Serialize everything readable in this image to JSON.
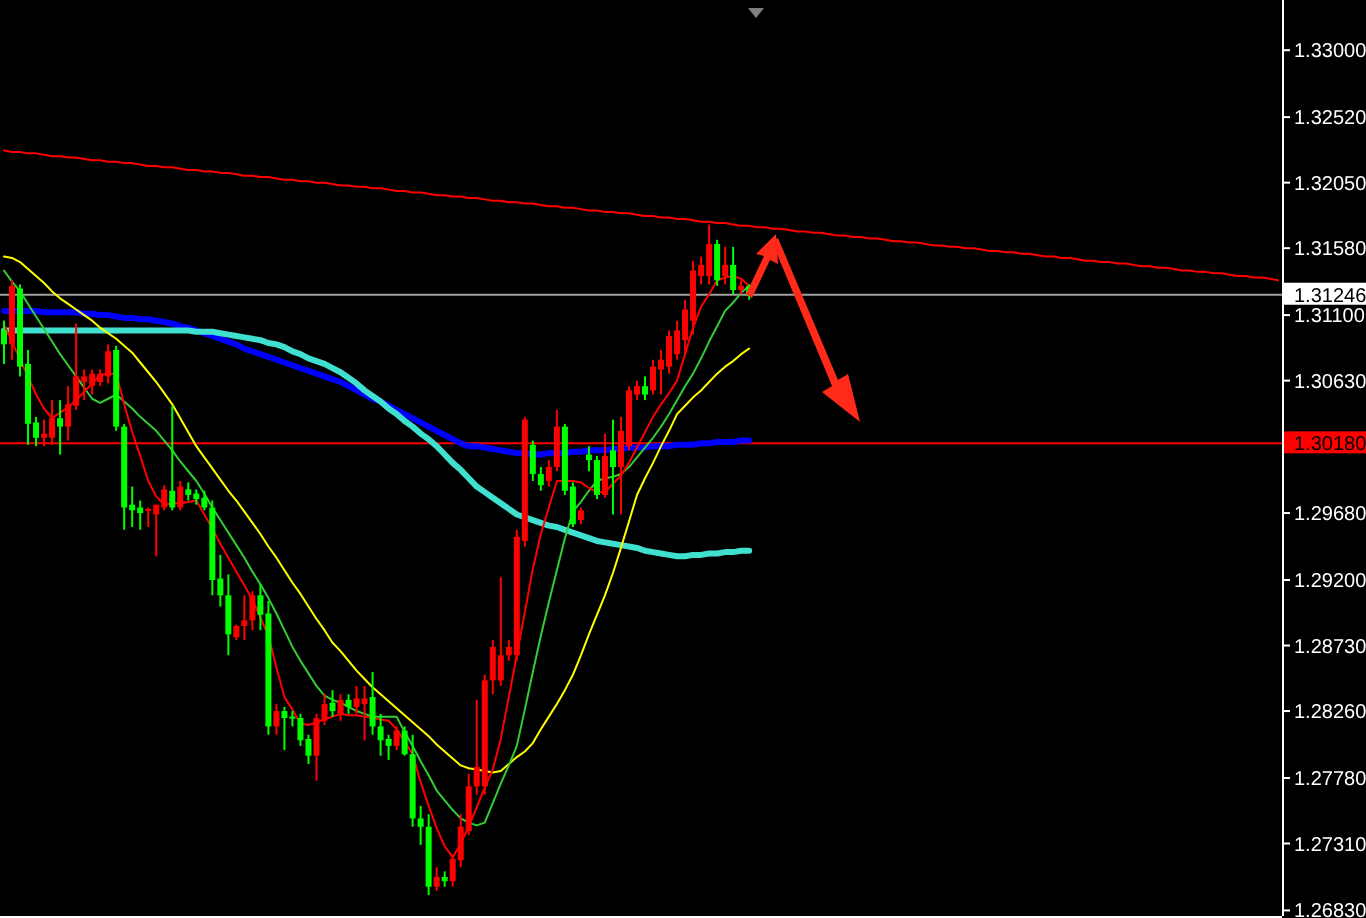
{
  "chart_data": {
    "type": "candlestick",
    "categories": [
      null,
      null,
      null,
      null,
      null,
      null,
      null,
      null,
      null,
      null,
      null,
      null,
      null,
      null,
      null,
      null,
      null,
      null,
      null,
      null,
      null,
      null,
      null,
      null,
      null,
      null,
      null,
      null,
      null,
      null,
      null,
      null,
      null,
      null,
      null,
      null,
      null,
      null,
      null,
      null,
      null,
      null,
      null,
      null,
      null,
      null,
      null,
      null,
      null,
      null,
      null,
      null,
      null,
      null,
      null,
      null,
      null,
      null,
      null,
      null,
      null,
      null,
      null,
      null,
      null,
      null,
      null,
      null,
      null,
      null,
      null,
      null,
      null,
      null,
      null,
      null,
      null,
      null,
      null,
      null,
      null,
      null,
      null,
      null,
      null,
      null,
      null,
      null,
      null,
      null,
      null,
      null,
      null,
      null,
      null,
      null,
      null,
      null,
      null,
      null,
      null,
      null,
      null,
      null,
      null,
      null,
      null,
      null,
      null,
      null,
      null,
      null,
      null,
      null,
      null,
      null,
      null,
      null,
      null,
      null,
      null,
      null,
      null,
      null,
      null,
      null,
      null,
      null,
      null,
      null,
      null,
      null,
      null,
      null,
      null,
      null,
      null,
      null,
      null,
      null,
      null,
      null,
      null,
      null,
      null,
      null,
      null,
      null,
      null,
      null,
      null,
      null,
      null,
      null,
      null,
      null,
      null,
      null,
      null,
      null
    ],
    "ohlc": [
      [
        1.3099,
        1.3106,
        1.3075,
        1.3089
      ],
      [
        1.3089,
        1.3135,
        1.3078,
        1.3131
      ],
      [
        1.3129,
        1.3132,
        1.3066,
        1.3073
      ],
      [
        1.3075,
        1.3085,
        1.3017,
        1.3032
      ],
      [
        1.3033,
        1.3037,
        1.3016,
        1.3022
      ],
      [
        1.3022,
        1.3035,
        1.3016,
        1.3025
      ],
      [
        1.3022,
        1.3049,
        1.3017,
        1.3036
      ],
      [
        1.3036,
        1.3049,
        1.301,
        1.303
      ],
      [
        1.303,
        1.3059,
        1.302,
        1.3046
      ],
      [
        1.3045,
        1.3104,
        1.3042,
        1.3066
      ],
      [
        1.3062,
        1.3071,
        1.3049,
        1.3066
      ],
      [
        1.3059,
        1.3071,
        1.3053,
        1.3068
      ],
      [
        1.3062,
        1.3071,
        1.3059,
        1.3068
      ],
      [
        1.3066,
        1.3089,
        1.3061,
        1.3084
      ],
      [
        1.3085,
        1.3088,
        1.3027,
        1.303
      ],
      [
        1.303,
        1.3032,
        1.2956,
        1.2972
      ],
      [
        1.2974,
        1.2987,
        1.2958,
        1.297
      ],
      [
        1.2972,
        1.2977,
        1.2956,
        1.2968
      ],
      [
        1.297,
        1.2972,
        1.2958,
        1.2971
      ],
      [
        1.2967,
        1.2974,
        1.2937,
        1.2974
      ],
      [
        1.2972,
        1.2988,
        1.297,
        1.2985
      ],
      [
        1.2984,
        1.3045,
        1.297,
        1.2972
      ],
      [
        1.2972,
        1.2991,
        1.297,
        1.2987
      ],
      [
        1.2985,
        1.299,
        1.2977,
        1.2981
      ],
      [
        1.2982,
        1.2985,
        1.2974,
        1.2978
      ],
      [
        1.2979,
        1.2984,
        1.297,
        1.2972
      ],
      [
        1.2972,
        1.2977,
        1.2909,
        1.292
      ],
      [
        1.2921,
        1.2938,
        1.2901,
        1.2909
      ],
      [
        1.2909,
        1.2924,
        1.2866,
        1.2881
      ],
      [
        1.2879,
        1.2888,
        1.2877,
        1.2887
      ],
      [
        1.2887,
        1.2909,
        1.2877,
        1.2891
      ],
      [
        1.2891,
        1.2912,
        1.2884,
        1.2909
      ],
      [
        1.2909,
        1.2917,
        1.2884,
        1.2895
      ],
      [
        1.2896,
        1.2905,
        1.2809,
        1.2815
      ],
      [
        1.2815,
        1.2831,
        1.2809,
        1.2826
      ],
      [
        1.2826,
        1.2829,
        1.2798,
        1.2821
      ],
      [
        1.2822,
        1.2826,
        1.2815,
        1.2821
      ],
      [
        1.2821,
        1.2824,
        1.2801,
        1.2805
      ],
      [
        1.2806,
        1.2809,
        1.2788,
        1.2794
      ],
      [
        1.2794,
        1.2824,
        1.2776,
        1.2821
      ],
      [
        1.2819,
        1.2838,
        1.2816,
        1.2831
      ],
      [
        1.2832,
        1.2841,
        1.2822,
        1.2826
      ],
      [
        1.2824,
        1.2838,
        1.2819,
        1.2834
      ],
      [
        1.2834,
        1.2838,
        1.2824,
        1.2829
      ],
      [
        1.2829,
        1.2844,
        1.2824,
        1.2835
      ],
      [
        1.2831,
        1.2844,
        1.2805,
        1.2835
      ],
      [
        1.2836,
        1.2854,
        1.2809,
        1.2815
      ],
      [
        1.2815,
        1.2824,
        1.2794,
        1.2805
      ],
      [
        1.2806,
        1.2809,
        1.2791,
        1.2801
      ],
      [
        1.2801,
        1.2815,
        1.2798,
        1.2812
      ],
      [
        1.2812,
        1.2815,
        1.2794,
        1.2795
      ],
      [
        1.2795,
        1.2809,
        1.2743,
        1.2749
      ],
      [
        1.2749,
        1.2758,
        1.273,
        1.2743
      ],
      [
        1.2743,
        1.2752,
        1.2694,
        1.27
      ],
      [
        1.27,
        1.2714,
        1.2697,
        1.2707
      ],
      [
        1.2707,
        1.2711,
        1.27,
        1.2704
      ],
      [
        1.2704,
        1.2723,
        1.27,
        1.272
      ],
      [
        1.2719,
        1.2752,
        1.2714,
        1.2743
      ],
      [
        1.274,
        1.2781,
        1.2737,
        1.2772
      ],
      [
        1.2772,
        1.2834,
        1.2766,
        1.2786
      ],
      [
        1.2772,
        1.2852,
        1.2766,
        1.2848
      ],
      [
        1.2848,
        1.2877,
        1.2838,
        1.2872
      ],
      [
        1.2848,
        1.2922,
        1.2844,
        1.2866
      ],
      [
        1.2866,
        1.2877,
        1.2862,
        1.2872
      ],
      [
        1.2866,
        1.2956,
        1.2862,
        1.2951
      ],
      [
        1.2948,
        1.3037,
        1.2944,
        1.3035
      ],
      [
        1.3017,
        1.302,
        1.2991,
        1.2996
      ],
      [
        1.2996,
        1.3001,
        1.2984,
        1.2988
      ],
      [
        1.2991,
        1.3006,
        1.2987,
        1.3001
      ],
      [
        1.3001,
        1.3042,
        1.2998,
        1.303
      ],
      [
        1.303,
        1.3032,
        1.2981,
        1.2984
      ],
      [
        1.2987,
        1.299,
        1.2958,
        1.296
      ],
      [
        1.2963,
        1.2972,
        1.296,
        1.297
      ],
      [
        1.301,
        1.3016,
        1.2998,
        1.3006
      ],
      [
        1.3006,
        1.3009,
        1.2978,
        1.2981
      ],
      [
        1.2981,
        1.3025,
        1.2979,
        1.3009
      ],
      [
        1.3013,
        1.3035,
        1.2967,
        1.3001
      ],
      [
        1.3001,
        1.3037,
        1.2967,
        1.3027
      ],
      [
        1.3016,
        1.3059,
        1.3013,
        1.3056
      ],
      [
        1.3053,
        1.3063,
        1.3049,
        1.3059
      ],
      [
        1.3059,
        1.3066,
        1.3049,
        1.3053
      ],
      [
        1.3056,
        1.3078,
        1.3053,
        1.3073
      ],
      [
        1.3071,
        1.3085,
        1.3053,
        1.3078
      ],
      [
        1.3073,
        1.3099,
        1.3068,
        1.3095
      ],
      [
        1.3082,
        1.3106,
        1.3078,
        1.3099
      ],
      [
        1.3092,
        1.3121,
        1.3082,
        1.3114
      ],
      [
        1.3106,
        1.3149,
        1.3096,
        1.3142
      ],
      [
        1.3138,
        1.3152,
        1.3132,
        1.3146
      ],
      [
        1.3138,
        1.3175,
        1.3132,
        1.3161
      ],
      [
        1.3161,
        1.3164,
        1.3131,
        1.3135
      ],
      [
        1.3138,
        1.3159,
        1.3132,
        1.3146
      ],
      [
        1.3146,
        1.3159,
        1.3125,
        1.3128
      ],
      [
        1.3128,
        1.3135,
        1.3125,
        1.3131
      ],
      [
        1.3131,
        1.3132,
        1.3121,
        1.3124
      ],
      null,
      null,
      null,
      null,
      null,
      null,
      null,
      null,
      null,
      null,
      null,
      null,
      null,
      null,
      null,
      null,
      null,
      null,
      null,
      null,
      null,
      null,
      null,
      null,
      null,
      null,
      null,
      null,
      null,
      null,
      null,
      null,
      null,
      null,
      null,
      null,
      null,
      null,
      null,
      null,
      null,
      null,
      null,
      null,
      null,
      null,
      null,
      null,
      null,
      null,
      null,
      null,
      null,
      null,
      null,
      null,
      null,
      null,
      null,
      null,
      null,
      null,
      null,
      null,
      null,
      null
    ],
    "colors": [
      "#00ff00",
      "#ff0000",
      "#00ff00",
      "#00ff00",
      "#00ff00",
      "#ff0000",
      "#ff0000",
      "#00ff00",
      "#ff0000",
      "#ff0000",
      "#ff0000",
      "#ff0000",
      "#ff0000",
      "#ff0000",
      "#00ff00",
      "#00ff00",
      "#00ff00",
      "#00ff00",
      "#ff0000",
      "#ff0000",
      "#ff0000",
      "#00ff00",
      "#ff0000",
      "#00ff00",
      "#00ff00",
      "#00ff00",
      "#00ff00",
      "#00ff00",
      "#00ff00",
      "#ff0000",
      "#ff0000",
      "#ff0000",
      "#00ff00",
      "#00ff00",
      "#ff0000",
      "#00ff00",
      "#00ff00",
      "#00ff00",
      "#00ff00",
      "#ff0000",
      "#ff0000",
      "#00ff00",
      "#ff0000",
      "#00ff00",
      "#ff0000",
      "#ff0000",
      "#00ff00",
      "#00ff00",
      "#00ff00",
      "#ff0000",
      "#00ff00",
      "#00ff00",
      "#00ff00",
      "#00ff00",
      "#ff0000",
      "#00ff00",
      "#ff0000",
      "#ff0000",
      "#ff0000",
      "#ff0000",
      "#ff0000",
      "#ff0000",
      "#ff0000",
      "#ff0000",
      "#ff0000",
      "#ff0000",
      "#00ff00",
      "#00ff00",
      "#ff0000",
      "#ff0000",
      "#00ff00",
      "#00ff00",
      "#ff0000",
      "#00ff00",
      "#00ff00",
      "#ff0000",
      "#00ff00",
      "#ff0000",
      "#ff0000",
      "#ff0000",
      "#00ff00",
      "#ff0000",
      "#ff0000",
      "#ff0000",
      "#ff0000",
      "#ff0000",
      "#ff0000",
      "#ff0000",
      "#ff0000",
      "#00ff00",
      "#ff0000",
      "#00ff00",
      "#ff0000",
      "#00ff00",
      null,
      null,
      null,
      null,
      null,
      null,
      null,
      null,
      null,
      null,
      null,
      null,
      null,
      null,
      null,
      null,
      null,
      null,
      null,
      null,
      null,
      null,
      null,
      null,
      null,
      null,
      null,
      null,
      null,
      null,
      null,
      null,
      null,
      null,
      null,
      null,
      null,
      null,
      null,
      null,
      null,
      null,
      null,
      null,
      null,
      null,
      null,
      null,
      null,
      null,
      null,
      null,
      null,
      null,
      null,
      null,
      null,
      null,
      null,
      null,
      null,
      null,
      null,
      null,
      null,
      null
    ],
    "series": [
      {
        "type": "line",
        "color": "#0000ff",
        "values": [
          1.3113,
          1.3113,
          1.3113,
          1.3113,
          1.3113,
          1.3112,
          1.3112,
          1.3112,
          1.3112,
          1.3112,
          1.3111,
          1.3111,
          1.311,
          1.311,
          1.3109,
          1.3108,
          1.3108,
          1.3107,
          1.3107,
          1.3106,
          1.3105,
          1.3104,
          1.3102,
          1.3101,
          1.3099,
          1.3097,
          1.3095,
          1.3093,
          1.3091,
          1.3089,
          1.3086,
          1.3084,
          1.3082,
          1.308,
          1.3078,
          1.3076,
          1.3074,
          1.3072,
          1.307,
          1.3068,
          1.3066,
          1.3064,
          1.3062,
          1.3059,
          1.3056,
          1.3053,
          1.305,
          1.3048,
          1.3045,
          1.3042,
          1.3039,
          1.3036,
          1.3033,
          1.303,
          1.3027,
          1.3024,
          1.3021,
          1.3018,
          1.3016,
          1.3016,
          1.3015,
          1.3014,
          1.3013,
          1.3012,
          1.3011,
          1.3011,
          1.301,
          1.301,
          1.3011,
          1.3011,
          1.3011,
          1.3012,
          1.3012,
          1.3013,
          1.3013,
          1.3013,
          1.3014,
          1.3014,
          1.3015,
          1.3015,
          1.3015,
          1.3016,
          1.3016,
          1.3016,
          1.3017,
          1.3017,
          1.3017,
          1.3018,
          1.3018,
          1.3019,
          1.3019,
          1.3019,
          1.302,
          1.302,
          null,
          null,
          null,
          null,
          null,
          null,
          null,
          null,
          null,
          null,
          null,
          null,
          null,
          null,
          null,
          null,
          null,
          null,
          null,
          null,
          null,
          null,
          null,
          null,
          null,
          null,
          null,
          null,
          null,
          null,
          null,
          null,
          null,
          null,
          null,
          null,
          null,
          null,
          null,
          null,
          null,
          null,
          null,
          null,
          null,
          null,
          null,
          null,
          null,
          null,
          null,
          null,
          null,
          null,
          null,
          null,
          null,
          null,
          null,
          null,
          null,
          null,
          null,
          null,
          null,
          null
        ]
      },
      {
        "type": "line",
        "color": "#40e0d0",
        "values": [
          1.3099,
          1.3099,
          1.3099,
          1.3099,
          1.3099,
          1.3099,
          1.3099,
          1.3099,
          1.3099,
          1.3099,
          1.3099,
          1.3099,
          1.3099,
          1.3099,
          1.3099,
          1.3099,
          1.3099,
          1.3099,
          1.3099,
          1.3099,
          1.3099,
          1.3099,
          1.3099,
          1.3099,
          1.3098,
          1.3098,
          1.3098,
          1.3097,
          1.3096,
          1.3095,
          1.3094,
          1.3093,
          1.3092,
          1.309,
          1.3089,
          1.3087,
          1.3084,
          1.3082,
          1.3079,
          1.3077,
          1.3075,
          1.3072,
          1.3069,
          1.3065,
          1.3061,
          1.3056,
          1.3052,
          1.3048,
          1.3043,
          1.3039,
          1.3034,
          1.303,
          1.3025,
          1.3021,
          1.3016,
          1.301,
          1.3004,
          1.2999,
          1.2993,
          1.2987,
          1.2983,
          1.2979,
          1.2975,
          1.2971,
          1.2967,
          1.2965,
          1.2963,
          1.2961,
          1.2959,
          1.2958,
          1.2956,
          1.2954,
          1.2952,
          1.295,
          1.2948,
          1.2947,
          1.2946,
          1.2945,
          1.2944,
          1.2943,
          1.2941,
          1.294,
          1.2939,
          1.2938,
          1.2937,
          1.2937,
          1.2938,
          1.2938,
          1.2939,
          1.2939,
          1.294,
          1.294,
          1.2941,
          1.2941,
          null,
          null,
          null,
          null,
          null,
          null,
          null,
          null,
          null,
          null,
          null,
          null,
          null,
          null,
          null,
          null,
          null,
          null,
          null,
          null,
          null,
          null,
          null,
          null,
          null,
          null,
          null,
          null,
          null,
          null,
          null,
          null,
          null,
          null,
          null,
          null,
          null,
          null,
          null,
          null,
          null,
          null,
          null,
          null,
          null,
          null,
          null,
          null,
          null,
          null,
          null,
          null,
          null,
          null,
          null,
          null,
          null,
          null,
          null,
          null,
          null,
          null,
          null,
          null,
          null,
          null
        ]
      },
      {
        "type": "line",
        "color": "#ffff00",
        "values": [
          1.3152,
          1.3151,
          1.3148,
          1.3143,
          1.3138,
          1.3133,
          1.3127,
          1.3122,
          1.3118,
          1.3114,
          1.311,
          1.3106,
          1.3101,
          1.3097,
          1.3093,
          1.3088,
          1.3083,
          1.3076,
          1.3069,
          1.3062,
          1.3054,
          1.3046,
          1.3036,
          1.3026,
          1.3016,
          1.3008,
          1.3,
          1.2992,
          1.2984,
          1.2977,
          1.2969,
          1.2961,
          1.2953,
          1.2944,
          1.2936,
          1.2927,
          1.2918,
          1.291,
          1.2901,
          1.2892,
          1.2884,
          1.2875,
          1.2869,
          1.2862,
          1.2855,
          1.2849,
          1.2843,
          1.2838,
          1.2833,
          1.2828,
          1.2823,
          1.2818,
          1.2813,
          1.2808,
          1.2802,
          1.2797,
          1.2792,
          1.2787,
          1.2785,
          1.2784,
          1.2783,
          1.2782,
          1.2783,
          1.2788,
          1.2793,
          1.2797,
          1.2803,
          1.2813,
          1.2822,
          1.2831,
          1.2841,
          1.2852,
          1.2866,
          1.2881,
          1.2895,
          1.2909,
          1.2925,
          1.2943,
          1.2962,
          1.2981,
          1.2993,
          1.3004,
          1.3016,
          1.3027,
          1.3039,
          1.3045,
          1.3051,
          1.3056,
          1.3062,
          1.3068,
          1.3073,
          1.3077,
          1.3082,
          1.3086,
          null,
          null,
          null,
          null,
          null,
          null,
          null,
          null,
          null,
          null,
          null,
          null,
          null,
          null,
          null,
          null,
          null,
          null,
          null,
          null,
          null,
          null,
          null,
          null,
          null,
          null,
          null,
          null,
          null,
          null,
          null,
          null,
          null,
          null,
          null,
          null,
          null,
          null,
          null,
          null,
          null,
          null,
          null,
          null,
          null,
          null,
          null,
          null,
          null,
          null,
          null,
          null,
          null,
          null,
          null,
          null,
          null,
          null,
          null,
          null,
          null,
          null,
          null,
          null,
          null,
          null
        ]
      },
      {
        "type": "line",
        "color": "#32cd32",
        "values": [
          1.3142,
          1.3134,
          1.3127,
          1.3118,
          1.3109,
          1.31,
          1.3091,
          1.3082,
          1.3074,
          1.3066,
          1.3058,
          1.305,
          1.3047,
          1.305,
          1.3053,
          1.3048,
          1.3043,
          1.3037,
          1.3032,
          1.3027,
          1.302,
          1.3013,
          1.3005,
          1.2998,
          1.2991,
          1.2982,
          1.2972,
          1.2963,
          1.2954,
          1.2945,
          1.2936,
          1.2926,
          1.2917,
          1.2907,
          1.2896,
          1.2884,
          1.2872,
          1.2862,
          1.2853,
          1.2844,
          1.2837,
          1.2834,
          1.2832,
          1.2829,
          1.2826,
          1.2824,
          1.2822,
          1.2822,
          1.2822,
          1.2822,
          1.2811,
          1.2801,
          1.279,
          1.278,
          1.2769,
          1.2762,
          1.2755,
          1.2749,
          1.2746,
          1.2744,
          1.2746,
          1.276,
          1.2774,
          1.2787,
          1.2801,
          1.2827,
          1.2854,
          1.288,
          1.2904,
          1.2927,
          1.295,
          1.2969,
          1.2976,
          1.2984,
          1.2991,
          1.2993,
          1.2994,
          1.2996,
          1.3001,
          1.3008,
          1.3015,
          1.3022,
          1.303,
          1.3039,
          1.3049,
          1.3059,
          1.3068,
          1.3079,
          1.3091,
          1.3102,
          1.3113,
          1.3119,
          1.3126,
          1.3131,
          null,
          null,
          null,
          null,
          null,
          null,
          null,
          null,
          null,
          null,
          null,
          null,
          null,
          null,
          null,
          null,
          null,
          null,
          null,
          null,
          null,
          null,
          null,
          null,
          null,
          null,
          null,
          null,
          null,
          null,
          null,
          null,
          null,
          null,
          null,
          null,
          null,
          null,
          null,
          null,
          null,
          null,
          null,
          null,
          null,
          null,
          null,
          null,
          null,
          null,
          null,
          null,
          null,
          null,
          null,
          null,
          null,
          null,
          null,
          null,
          null,
          null,
          null,
          null,
          null,
          null
        ]
      },
      {
        "type": "line",
        "color": "#ff0000",
        "values": [
          1.3103,
          1.3091,
          1.3078,
          1.3066,
          1.3053,
          1.3043,
          1.3036,
          1.304,
          1.3044,
          1.3049,
          1.3055,
          1.3061,
          1.3067,
          1.3068,
          1.3068,
          1.3046,
          1.3026,
          1.3009,
          1.2991,
          1.298,
          1.2974,
          1.2975,
          1.2975,
          1.2976,
          1.2977,
          1.2967,
          1.2957,
          1.2946,
          1.2936,
          1.2926,
          1.2916,
          1.2906,
          1.2893,
          1.288,
          1.2857,
          1.2836,
          1.2827,
          1.2817,
          1.2816,
          1.2818,
          1.282,
          1.2822,
          1.2824,
          1.2823,
          1.2823,
          1.2822,
          1.2821,
          1.282,
          1.2819,
          1.2813,
          1.2804,
          1.2795,
          1.2775,
          1.2758,
          1.2742,
          1.2729,
          1.2721,
          1.2731,
          1.2743,
          1.2757,
          1.2771,
          1.2784,
          1.2806,
          1.2836,
          1.2866,
          1.2897,
          1.2928,
          1.2953,
          1.2972,
          1.2991,
          1.2991,
          1.2991,
          1.299,
          1.2986,
          1.2983,
          1.2983,
          1.2989,
          1.2995,
          1.3004,
          1.3015,
          1.3026,
          1.3037,
          1.3046,
          1.3054,
          1.3063,
          1.3082,
          1.3101,
          1.3116,
          1.3125,
          1.3135,
          1.3137,
          1.3138,
          1.3136,
          1.3131,
          null,
          null,
          null,
          null,
          null,
          null,
          null,
          null,
          null,
          null,
          null,
          null,
          null,
          null,
          null,
          null,
          null,
          null,
          null,
          null,
          null,
          null,
          null,
          null,
          null,
          null,
          null,
          null,
          null,
          null,
          null,
          null,
          null,
          null,
          null,
          null,
          null,
          null,
          null,
          null,
          null,
          null,
          null,
          null,
          null,
          null,
          null,
          null,
          null,
          null,
          null,
          null,
          null,
          null,
          null,
          null,
          null,
          null,
          null,
          null,
          null,
          null,
          null,
          null,
          null,
          null
        ]
      },
      {
        "type": "line",
        "color": "#ff0000",
        "values": [
          1.3228,
          1.3227,
          1.3227,
          1.3226,
          1.3226,
          1.3225,
          1.3224,
          1.3224,
          1.3223,
          1.3223,
          1.3222,
          1.3221,
          1.3221,
          1.322,
          1.322,
          1.3219,
          1.3219,
          1.3218,
          1.3217,
          1.3217,
          1.3216,
          1.3216,
          1.3215,
          1.3214,
          1.3214,
          1.3213,
          1.3213,
          1.3212,
          1.3212,
          1.3211,
          1.321,
          1.321,
          1.3209,
          1.3209,
          1.3208,
          1.3207,
          1.3207,
          1.3206,
          1.3206,
          1.3205,
          1.3205,
          1.3204,
          1.3203,
          1.3203,
          1.3202,
          1.3202,
          1.3201,
          1.3201,
          1.32,
          1.3199,
          1.3199,
          1.3198,
          1.3198,
          1.3197,
          1.3196,
          1.3196,
          1.3195,
          1.3195,
          1.3194,
          1.3194,
          1.3193,
          1.3192,
          1.3192,
          1.3191,
          1.3191,
          1.319,
          1.319,
          1.3189,
          1.3188,
          1.3188,
          1.3187,
          1.3187,
          1.3186,
          1.3185,
          1.3185,
          1.3184,
          1.3184,
          1.3183,
          1.3183,
          1.3182,
          1.3181,
          1.3181,
          1.318,
          1.318,
          1.3179,
          1.3179,
          1.3178,
          1.3177,
          1.3177,
          1.3176,
          1.3176,
          1.3175,
          1.3174,
          1.3174,
          1.3173,
          1.3173,
          1.3172,
          1.3172,
          1.3171,
          1.317,
          1.317,
          1.3169,
          1.3169,
          1.3168,
          1.3167,
          1.3167,
          1.3166,
          1.3166,
          1.3165,
          1.3165,
          1.3164,
          1.3163,
          1.3163,
          1.3162,
          1.3162,
          1.3161,
          1.316,
          1.316,
          1.3159,
          1.3159,
          1.3158,
          1.3158,
          1.3157,
          1.3156,
          1.3156,
          1.3155,
          1.3155,
          1.3154,
          1.3154,
          1.3153,
          1.3152,
          1.3152,
          1.3151,
          1.3151,
          1.315,
          1.3149,
          1.3149,
          1.3148,
          1.3148,
          1.3147,
          1.3147,
          1.3146,
          1.3145,
          1.3145,
          1.3144,
          1.3144,
          1.3143,
          1.3142,
          1.3142,
          1.3141,
          1.3141,
          1.314,
          1.314,
          1.3139,
          1.3138,
          1.3138,
          1.3137,
          1.3137,
          1.3136,
          1.3135
        ]
      }
    ],
    "ylim": [
      1.2679,
      1.3336
    ],
    "yticks": [
      {
        "value": 1.33,
        "label": "1.33000"
      },
      {
        "value": 1.3252,
        "label": "1.32520"
      },
      {
        "value": 1.3205,
        "label": "1.32050"
      },
      {
        "value": 1.3158,
        "label": "1.31580"
      },
      {
        "value": 1.311,
        "label": "1.31100"
      },
      {
        "value": 1.3063,
        "label": "1.30630"
      },
      {
        "value": 1.2968,
        "label": "1.29680"
      },
      {
        "value": 1.292,
        "label": "1.29200"
      },
      {
        "value": 1.2873,
        "label": "1.28730"
      },
      {
        "value": 1.2826,
        "label": "1.28260"
      },
      {
        "value": 1.2778,
        "label": "1.27780"
      },
      {
        "value": 1.2731,
        "label": "1.27310"
      },
      {
        "value": 1.2683,
        "label": "1.26830"
      }
    ],
    "tick_labels": "y",
    "ref_lines": [
      {
        "axis": "y",
        "value": 1.31246,
        "label": "1.31246",
        "color": "#a0a0a0"
      },
      {
        "axis": "y",
        "value": 1.3018,
        "label": "1.30180",
        "color": "#ff0000"
      }
    ]
  }
}
